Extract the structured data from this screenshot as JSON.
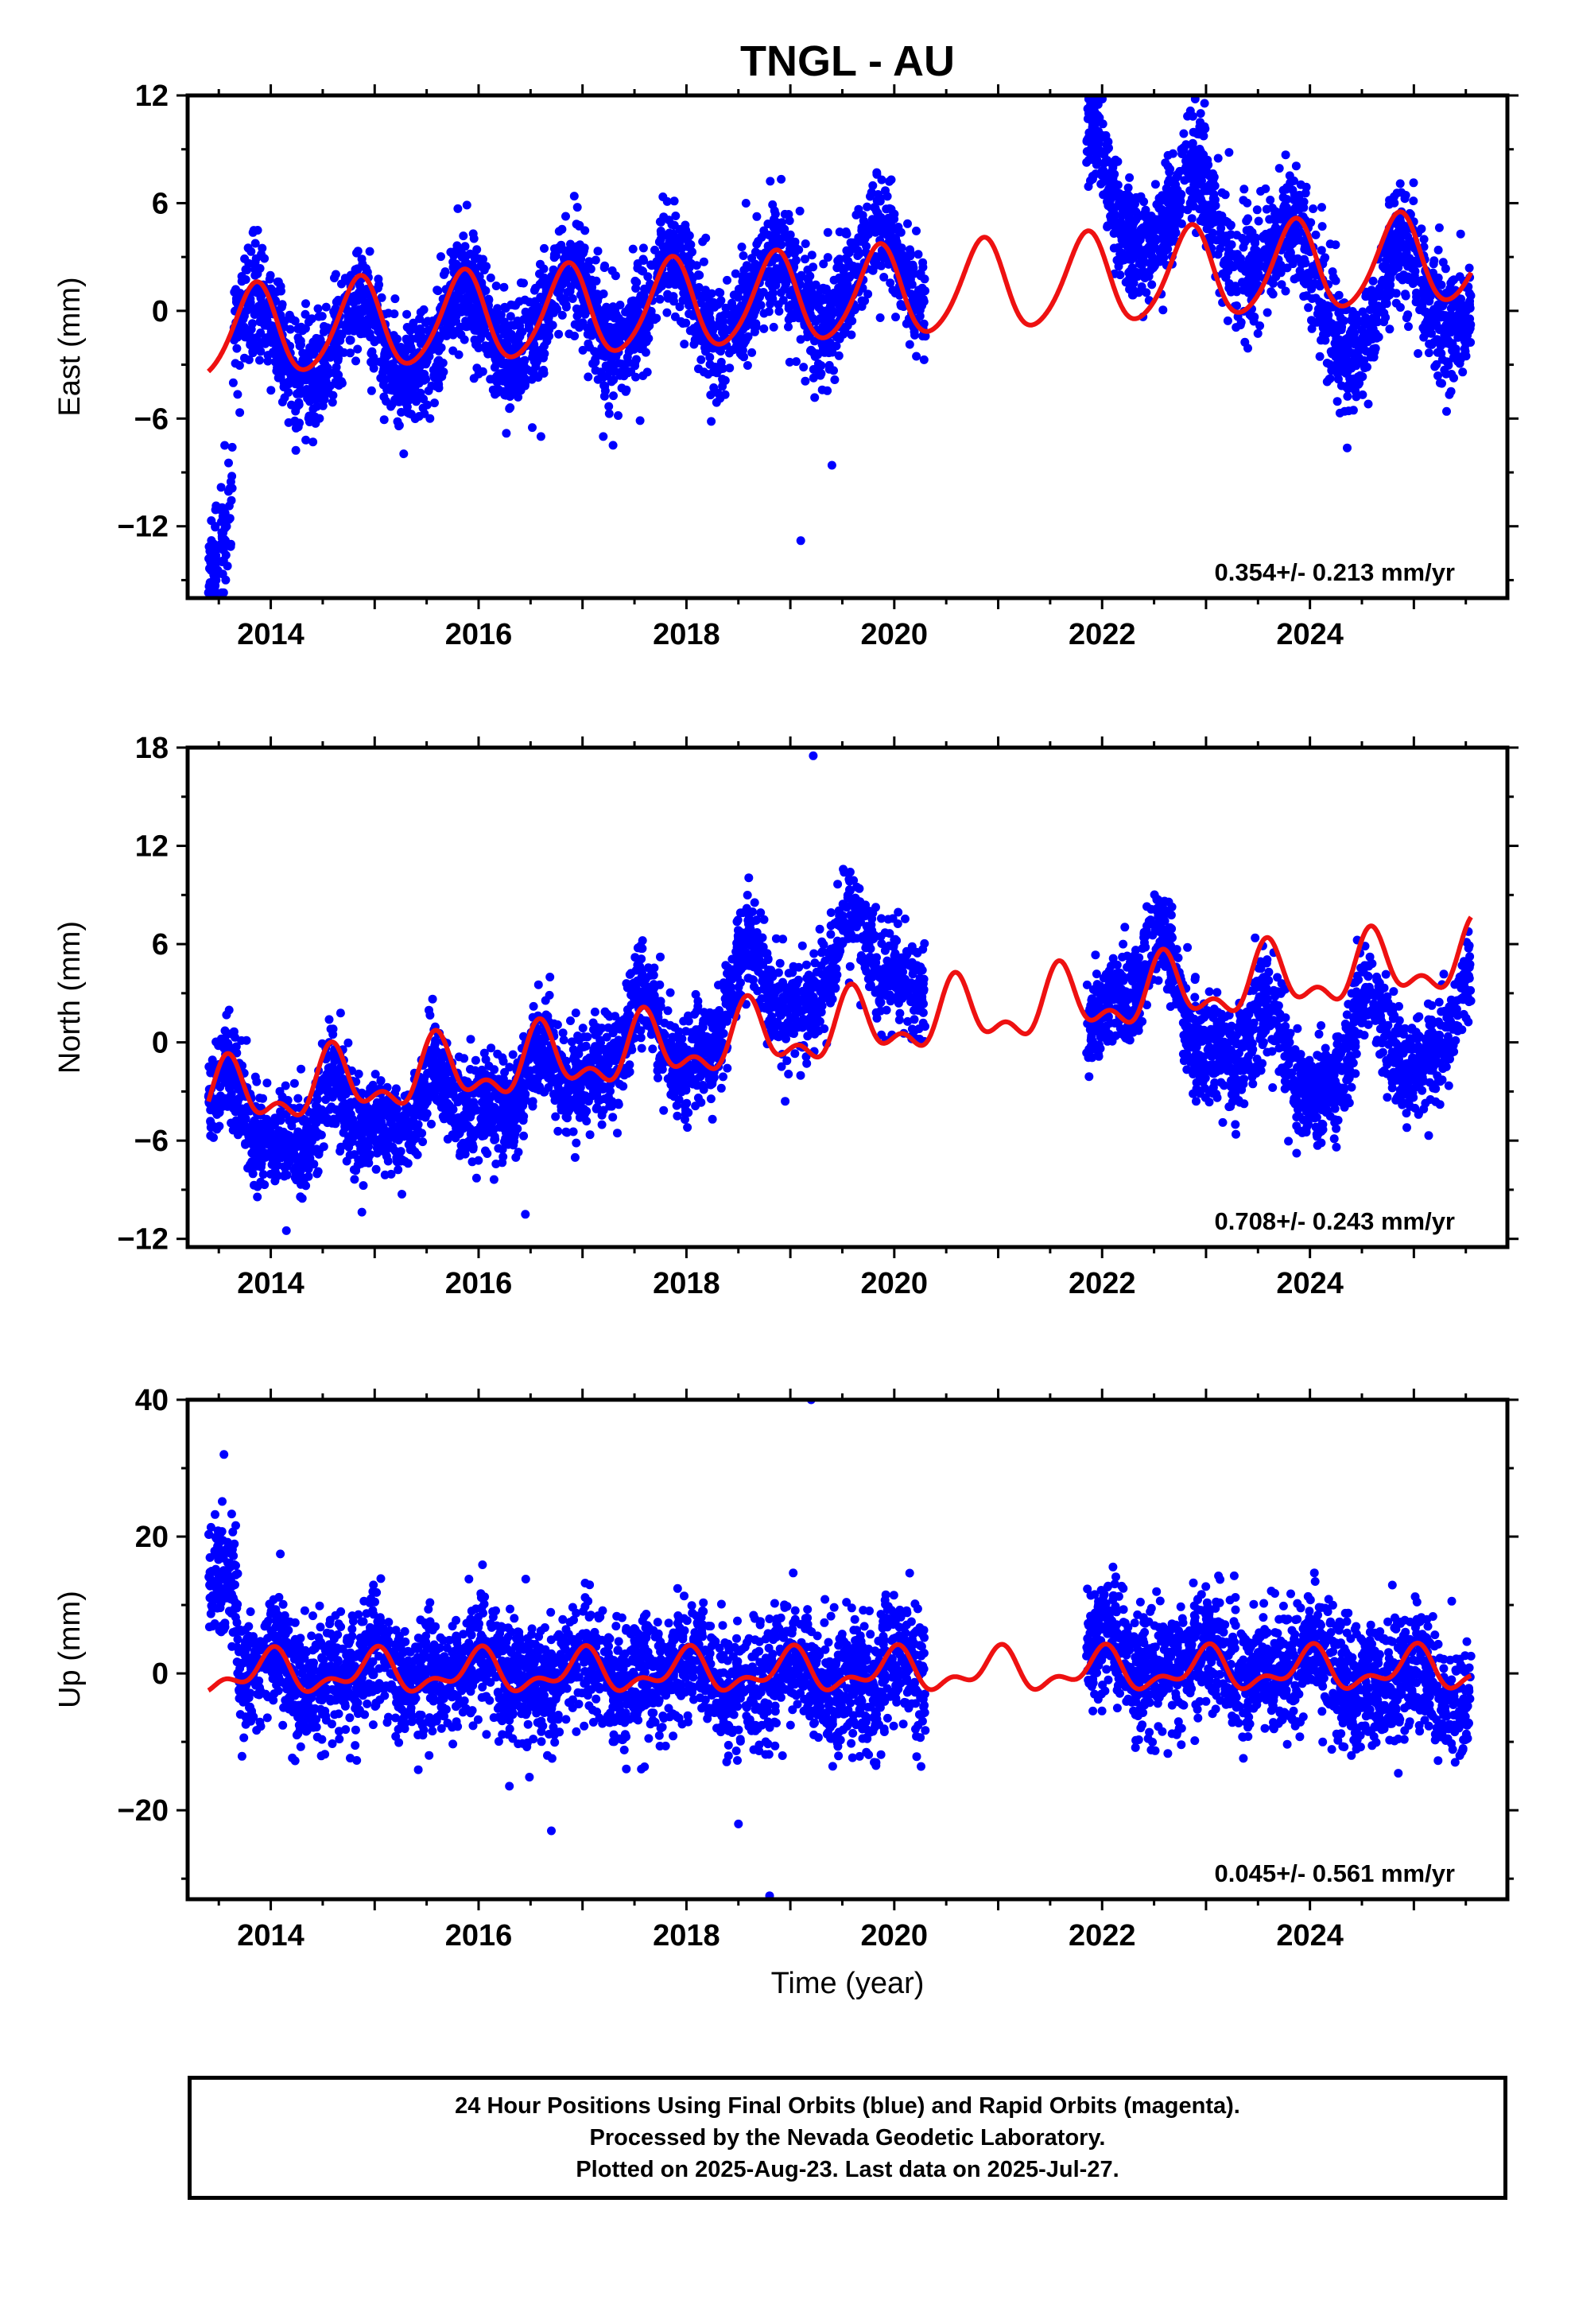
{
  "figure": {
    "title": "TNGL - AU",
    "xlabel": "Time (year)",
    "caption_lines": [
      "24 Hour Positions Using Final Orbits (blue) and Rapid Orbits (magenta).",
      "Processed by the Nevada Geodetic Laboratory.",
      "Plotted on 2025-Aug-23. Last data on 2025-Jul-27."
    ],
    "colors": {
      "observations": "#0000ff",
      "model": "#ee1111",
      "frame": "#000000"
    }
  },
  "chart_data": [
    {
      "type": "scatter",
      "ylabel": "East (mm)",
      "rate_text": "0.354+/- 0.213 mm/yr",
      "xlim": [
        2013.2,
        2025.9
      ],
      "ylim": [
        -16,
        12
      ],
      "x_ticks": [
        2014,
        2016,
        2018,
        2020,
        2022,
        2024
      ],
      "y_ticks": [
        -12,
        -6,
        0,
        6,
        12
      ],
      "grid": false,
      "series": [
        {
          "role": "observations",
          "segments": [
            [
              2013.4,
              2013.62
            ],
            [
              2013.62,
              2020.3
            ],
            [
              2021.85,
              2025.55
            ]
          ],
          "trend_points": [
            [
              2013.4,
              -13.0
            ],
            [
              2013.62,
              -11.0
            ],
            [
              2013.65,
              -2.0
            ],
            [
              2014.0,
              -1.5
            ],
            [
              2015.0,
              -2.0
            ],
            [
              2016.0,
              -1.0
            ],
            [
              2017.0,
              0.0
            ],
            [
              2018.0,
              0.5
            ],
            [
              2019.0,
              0.5
            ],
            [
              2019.7,
              2.5
            ],
            [
              2020.3,
              2.0
            ],
            [
              2021.85,
              8.0
            ],
            [
              2022.5,
              5.0
            ],
            [
              2023.0,
              5.5
            ],
            [
              2024.0,
              1.5
            ],
            [
              2024.5,
              -1.0
            ],
            [
              2025.0,
              2.0
            ],
            [
              2025.55,
              0.5
            ]
          ],
          "scatter_mm": 1.6
        },
        {
          "role": "model",
          "x_range": [
            2013.4,
            2025.55
          ],
          "model": {
            "offset": -1.3,
            "rate": 0.354,
            "t0": 2013.4,
            "annual_amp": 2.5,
            "annual_peak": 2013.85,
            "semi_amp": 0.3,
            "semi_peak": 2013.9
          }
        }
      ],
      "outliers": [
        [
          2019.4,
          -8.6
        ],
        [
          2019.1,
          -12.8
        ],
        [
          2016.6,
          -7.0
        ],
        [
          2017.2,
          -7.0
        ]
      ]
    },
    {
      "type": "scatter",
      "ylabel": "North (mm)",
      "rate_text": "0.708+/- 0.243 mm/yr",
      "xlim": [
        2013.2,
        2025.9
      ],
      "ylim": [
        -12.5,
        18
      ],
      "x_ticks": [
        2014,
        2016,
        2018,
        2020,
        2022,
        2024
      ],
      "y_ticks": [
        -12,
        -6,
        0,
        6,
        12,
        18
      ],
      "grid": false,
      "series": [
        {
          "role": "observations",
          "segments": [
            [
              2013.4,
              2020.3
            ],
            [
              2021.85,
              2025.55
            ]
          ],
          "trend_points": [
            [
              2013.4,
              -4.0
            ],
            [
              2014.0,
              -5.5
            ],
            [
              2015.0,
              -4.5
            ],
            [
              2016.0,
              -3.5
            ],
            [
              2017.0,
              -1.5
            ],
            [
              2017.6,
              1.0
            ],
            [
              2018.0,
              -1.0
            ],
            [
              2018.6,
              4.0
            ],
            [
              2019.0,
              2.5
            ],
            [
              2019.6,
              6.0
            ],
            [
              2020.3,
              4.0
            ],
            [
              2021.85,
              2.0
            ],
            [
              2022.5,
              5.0
            ],
            [
              2023.0,
              0.0
            ],
            [
              2023.5,
              0.5
            ],
            [
              2024.0,
              -2.5
            ],
            [
              2024.5,
              1.0
            ],
            [
              2025.0,
              -1.0
            ],
            [
              2025.55,
              2.5
            ]
          ],
          "scatter_mm": 1.5
        },
        {
          "role": "model",
          "x_range": [
            2013.4,
            2025.55
          ],
          "model": {
            "offset": -3.5,
            "rate": 0.708,
            "t0": 2013.4,
            "annual_amp": 1.7,
            "annual_peak": 2013.6,
            "semi_amp": 1.0,
            "semi_peak": 2013.58
          }
        }
      ],
      "outliers": [
        [
          2019.22,
          17.5
        ],
        [
          2014.15,
          -11.5
        ],
        [
          2016.45,
          -10.5
        ],
        [
          2018.95,
          -3.6
        ]
      ]
    },
    {
      "type": "scatter",
      "ylabel": "Up (mm)",
      "rate_text": "0.045+/- 0.561 mm/yr",
      "xlim": [
        2013.2,
        2025.9
      ],
      "ylim": [
        -33,
        40
      ],
      "x_ticks": [
        2014,
        2016,
        2018,
        2020,
        2022,
        2024
      ],
      "y_ticks": [
        -20,
        0,
        20,
        40
      ],
      "grid": false,
      "series": [
        {
          "role": "observations",
          "segments": [
            [
              2013.4,
              2013.65
            ],
            [
              2013.65,
              2020.3
            ],
            [
              2021.85,
              2025.55
            ]
          ],
          "trend_points": [
            [
              2013.4,
              18.0
            ],
            [
              2013.65,
              15.0
            ],
            [
              2013.7,
              0.0
            ],
            [
              2015.0,
              0.0
            ],
            [
              2017.0,
              0.0
            ],
            [
              2019.0,
              -1.0
            ],
            [
              2020.3,
              0.0
            ],
            [
              2021.85,
              3.0
            ],
            [
              2023.0,
              1.0
            ],
            [
              2024.0,
              1.0
            ],
            [
              2025.55,
              -3.0
            ]
          ],
          "scatter_mm": 4.5
        },
        {
          "role": "model",
          "x_range": [
            2013.4,
            2025.55
          ],
          "model": {
            "offset": 0.0,
            "rate": 0.045,
            "t0": 2013.4,
            "annual_amp": 2.5,
            "annual_peak": 2014.0,
            "semi_amp": 1.5,
            "semi_peak": 2014.05
          }
        }
      ],
      "outliers": [
        [
          2019.2,
          40.0
        ],
        [
          2018.8,
          -32.5
        ],
        [
          2016.7,
          -23.0
        ],
        [
          2018.5,
          -22.0
        ],
        [
          2013.55,
          32.0
        ]
      ]
    }
  ]
}
